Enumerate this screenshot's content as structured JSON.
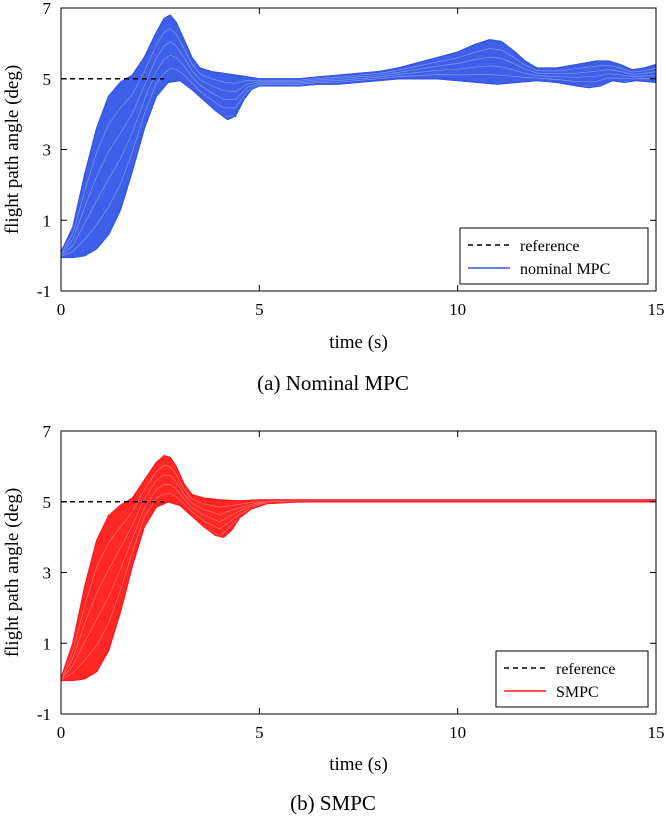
{
  "chart_data": [
    {
      "type": "line",
      "caption": "(a) Nominal MPC",
      "xlabel": "time (s)",
      "ylabel": "flight path angle (deg)",
      "xlim": [
        0,
        15
      ],
      "ylim": [
        -1,
        7
      ],
      "xticks": [
        "0",
        "5",
        "10",
        "15"
      ],
      "yticks": [
        "-1",
        "1",
        "3",
        "5",
        "7"
      ],
      "legend_position": "bottom-right",
      "color": "#3456e6",
      "reference": {
        "name": "reference",
        "value": 5,
        "x": [
          0,
          2.6
        ]
      },
      "series": [
        {
          "name": "nominal MPC",
          "note_envelope": "band of many trajectories",
          "upper": {
            "x": [
              0,
              0.3,
              0.6,
              0.9,
              1.2,
              1.5,
              1.8,
              2.1,
              2.4,
              2.6,
              2.75,
              2.9,
              3.1,
              3.3,
              3.5,
              3.8,
              4.1,
              4.4,
              4.7,
              5.0,
              5.5,
              6.0,
              6.5,
              7.0,
              7.5,
              8.0,
              8.5,
              9.0,
              9.5,
              10.0,
              10.4,
              10.8,
              11.1,
              11.4,
              11.7,
              12.0,
              12.5,
              13.0,
              13.5,
              13.8,
              14.1,
              14.4,
              14.7,
              15.0
            ],
            "y": [
              0.1,
              0.8,
              2.3,
              3.6,
              4.5,
              4.9,
              5.1,
              5.6,
              6.3,
              6.7,
              6.8,
              6.6,
              6.1,
              5.6,
              5.3,
              5.2,
              5.15,
              5.1,
              5.05,
              5.0,
              5.0,
              5.0,
              5.05,
              5.1,
              5.15,
              5.2,
              5.3,
              5.45,
              5.6,
              5.75,
              5.95,
              6.1,
              6.05,
              5.8,
              5.5,
              5.3,
              5.3,
              5.4,
              5.5,
              5.5,
              5.4,
              5.25,
              5.3,
              5.4
            ]
          },
          "lower": {
            "x": [
              0,
              0.3,
              0.6,
              0.9,
              1.2,
              1.5,
              1.8,
              2.1,
              2.4,
              2.7,
              3.0,
              3.3,
              3.6,
              3.9,
              4.2,
              4.4,
              4.6,
              4.8,
              5.0,
              5.5,
              6.0,
              6.5,
              7.0,
              7.5,
              8.0,
              8.5,
              9.0,
              9.5,
              10.0,
              10.5,
              11.0,
              11.5,
              12.0,
              12.5,
              13.0,
              13.3,
              13.6,
              13.9,
              14.2,
              14.5,
              15.0
            ],
            "y": [
              -0.05,
              -0.05,
              0.0,
              0.2,
              0.6,
              1.3,
              2.4,
              3.6,
              4.5,
              4.9,
              4.95,
              4.7,
              4.4,
              4.1,
              3.85,
              3.95,
              4.4,
              4.7,
              4.8,
              4.8,
              4.8,
              4.85,
              4.85,
              4.9,
              4.95,
              5.0,
              5.0,
              5.0,
              4.95,
              4.9,
              4.85,
              4.9,
              4.95,
              4.9,
              4.8,
              4.75,
              4.8,
              4.95,
              4.9,
              4.95,
              4.9
            ]
          }
        }
      ]
    },
    {
      "type": "line",
      "caption": "(b) SMPC",
      "xlabel": "time (s)",
      "ylabel": "flight path angle (deg)",
      "xlim": [
        0,
        15
      ],
      "ylim": [
        -1,
        7
      ],
      "xticks": [
        "0",
        "5",
        "10",
        "15"
      ],
      "yticks": [
        "-1",
        "1",
        "3",
        "5",
        "7"
      ],
      "legend_position": "bottom-right",
      "color": "#ff1a1a",
      "reference": {
        "name": "reference",
        "value": 5,
        "x": [
          0,
          2.6
        ]
      },
      "series": [
        {
          "name": "SMPC",
          "note_envelope": "band of many trajectories",
          "upper": {
            "x": [
              0,
              0.3,
              0.6,
              0.9,
              1.2,
              1.5,
              1.8,
              2.1,
              2.4,
              2.6,
              2.75,
              2.9,
              3.1,
              3.3,
              3.6,
              4.0,
              4.5,
              5.0,
              6.0,
              8.0,
              10.0,
              12.0,
              15.0
            ],
            "y": [
              0.0,
              1.0,
              2.6,
              3.9,
              4.6,
              4.9,
              5.1,
              5.6,
              6.1,
              6.3,
              6.25,
              6.0,
              5.5,
              5.2,
              5.1,
              5.05,
              5.02,
              5.05,
              5.05,
              5.05,
              5.05,
              5.05,
              5.05
            ]
          },
          "lower": {
            "x": [
              0,
              0.3,
              0.6,
              0.9,
              1.2,
              1.5,
              1.8,
              2.1,
              2.4,
              2.7,
              3.0,
              3.3,
              3.6,
              3.9,
              4.1,
              4.3,
              4.5,
              4.8,
              5.2,
              6.0,
              8.0,
              10.0,
              12.0,
              15.0
            ],
            "y": [
              -0.05,
              -0.05,
              0.0,
              0.2,
              0.8,
              1.9,
              3.2,
              4.3,
              4.85,
              5.0,
              4.9,
              4.6,
              4.3,
              4.05,
              4.0,
              4.2,
              4.55,
              4.8,
              4.95,
              5.0,
              5.0,
              5.0,
              5.0,
              5.0
            ]
          }
        }
      ]
    }
  ]
}
